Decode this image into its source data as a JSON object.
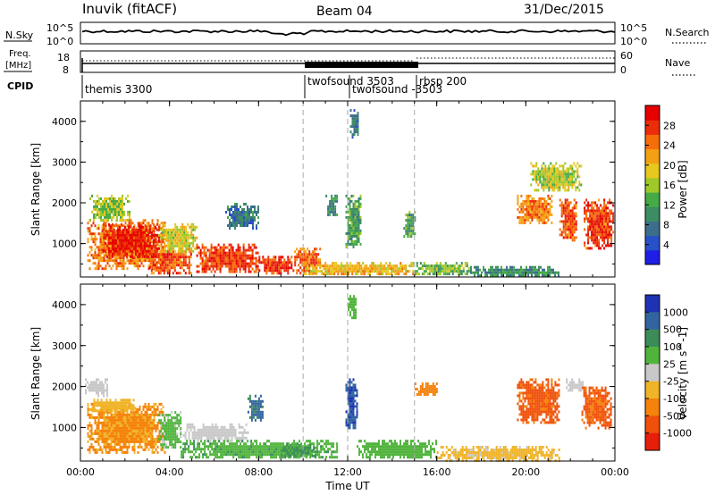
{
  "header": {
    "station": "Inuvik (fitACF)",
    "beam": "Beam 04",
    "date": "31/Dec/2015"
  },
  "top_panels": {
    "nsky": {
      "left_label": "N.Sky",
      "left_ticks": [
        "10^5",
        "10^0"
      ],
      "right_label": "N.Search",
      "right_ticks": [
        "10^5",
        "10^0"
      ]
    },
    "freq": {
      "left_label_line1": "Freq.",
      "left_label_line2": "[MHz]",
      "left_ticks": [
        "18",
        "8"
      ],
      "right_label": "Nave",
      "right_ticks": [
        "60",
        "0"
      ]
    },
    "cpid": {
      "label": "CPID",
      "programs": [
        "themis 3300",
        "twofsound 3503",
        "twofsound -3503",
        "rbsp 200"
      ]
    }
  },
  "chart_data": [
    {
      "type": "heatmap",
      "name": "power",
      "ylabel": "Slant Range [km]",
      "xlabel": "",
      "x_ticks": [
        "00:00",
        "04:00",
        "08:00",
        "12:00",
        "16:00",
        "20:00",
        "00:00"
      ],
      "y_ticks": [
        "1000",
        "2000",
        "3000",
        "4000"
      ],
      "xlim_hours": [
        0,
        24
      ],
      "ylim_km": [
        180,
        4500
      ],
      "colorbar": {
        "label": "Power [dB]",
        "ticks": [
          "4",
          "8",
          "12",
          "16",
          "20",
          "24",
          "28"
        ],
        "range": [
          0,
          32
        ],
        "colors": [
          "#1e1ee6",
          "#2850c8",
          "#3c6e8c",
          "#3c8c64",
          "#46aa46",
          "#a0c828",
          "#e6c81e",
          "#f5a014",
          "#f56e0a",
          "#eb2d0a",
          "#e60000"
        ]
      },
      "regions": [
        {
          "t0": 0.3,
          "t1": 3.8,
          "r0": 400,
          "r1": 1600,
          "v": 24
        },
        {
          "t0": 1.0,
          "t1": 3.5,
          "r0": 700,
          "r1": 1500,
          "v": 29
        },
        {
          "t0": 3.0,
          "t1": 5.0,
          "r0": 300,
          "r1": 900,
          "v": 26
        },
        {
          "t0": 3.5,
          "t1": 5.2,
          "r0": 800,
          "r1": 1500,
          "v": 18
        },
        {
          "t0": 5.2,
          "t1": 8.0,
          "r0": 300,
          "r1": 1000,
          "v": 27
        },
        {
          "t0": 8.0,
          "t1": 9.6,
          "r0": 300,
          "r1": 700,
          "v": 28
        },
        {
          "t0": 9.6,
          "t1": 10.8,
          "r0": 300,
          "r1": 900,
          "v": 25
        },
        {
          "t0": 10.0,
          "t1": 15.0,
          "r0": 250,
          "r1": 550,
          "v": 20
        },
        {
          "t0": 15.0,
          "t1": 17.5,
          "r0": 250,
          "r1": 550,
          "v": 14
        },
        {
          "t0": 17.5,
          "t1": 21.5,
          "r0": 220,
          "r1": 450,
          "v": 10
        },
        {
          "t0": 11.9,
          "t1": 12.6,
          "r0": 900,
          "r1": 2200,
          "v": 12
        },
        {
          "t0": 12.1,
          "t1": 12.5,
          "r0": 3600,
          "r1": 4300,
          "v": 8
        },
        {
          "t0": 0.4,
          "t1": 2.2,
          "r0": 1600,
          "r1": 2200,
          "v": 16
        },
        {
          "t0": 6.5,
          "t1": 8.0,
          "r0": 1400,
          "r1": 2000,
          "v": 8
        },
        {
          "t0": 19.6,
          "t1": 21.2,
          "r0": 1500,
          "r1": 2200,
          "v": 24
        },
        {
          "t0": 21.5,
          "t1": 22.3,
          "r0": 1100,
          "r1": 2100,
          "v": 26
        },
        {
          "t0": 22.6,
          "t1": 23.9,
          "r0": 900,
          "r1": 2100,
          "v": 27
        },
        {
          "t0": 20.2,
          "t1": 22.5,
          "r0": 2300,
          "r1": 3000,
          "v": 17
        },
        {
          "t0": 14.5,
          "t1": 15.0,
          "r0": 1200,
          "r1": 1800,
          "v": 12
        },
        {
          "t0": 11.0,
          "t1": 11.5,
          "r0": 1700,
          "r1": 2200,
          "v": 10
        }
      ]
    },
    {
      "type": "heatmap",
      "name": "velocity",
      "ylabel": "Slant Range [km]",
      "xlabel": "Time UT",
      "x_ticks": [
        "00:00",
        "04:00",
        "08:00",
        "12:00",
        "16:00",
        "20:00",
        "00:00"
      ],
      "y_ticks": [
        "1000",
        "2000",
        "3000",
        "4000"
      ],
      "xlim_hours": [
        0,
        24
      ],
      "ylim_km": [
        180,
        4500
      ],
      "colorbar": {
        "label": "Velocity [m s^-1]",
        "ticks": [
          "1000",
          "500",
          "100",
          "25",
          "-25",
          "-100",
          "-500",
          "-1000"
        ],
        "colors": [
          "#1e32b4",
          "#3264a0",
          "#3c8c5a",
          "#50b43c",
          "#c8c8c8",
          "#f0b428",
          "#f5820a",
          "#f0500a",
          "#e61e0a"
        ]
      },
      "regions": [
        {
          "t0": 0.3,
          "t1": 3.8,
          "r0": 400,
          "r1": 1600,
          "v": -120
        },
        {
          "t0": 0.5,
          "t1": 2.5,
          "r0": 1400,
          "r1": 1700,
          "v": -60
        },
        {
          "t0": 3.5,
          "t1": 4.5,
          "r0": 500,
          "r1": 1400,
          "v": 40
        },
        {
          "t0": 4.6,
          "t1": 7.5,
          "r0": 700,
          "r1": 1100,
          "v": 0
        },
        {
          "t0": 4.5,
          "t1": 11.5,
          "r0": 250,
          "r1": 700,
          "v": 80
        },
        {
          "t0": 7.5,
          "t1": 8.2,
          "r0": 1200,
          "r1": 1800,
          "v": 600
        },
        {
          "t0": 11.9,
          "t1": 12.4,
          "r0": 900,
          "r1": 2200,
          "v": 900
        },
        {
          "t0": 12.4,
          "t1": 16.0,
          "r0": 250,
          "r1": 700,
          "v": 60
        },
        {
          "t0": 16.0,
          "t1": 21.5,
          "r0": 220,
          "r1": 550,
          "v": -40
        },
        {
          "t0": 19.6,
          "t1": 21.5,
          "r0": 1100,
          "r1": 2200,
          "v": -700
        },
        {
          "t0": 22.5,
          "t1": 23.8,
          "r0": 1000,
          "r1": 2000,
          "v": -600
        },
        {
          "t0": 21.8,
          "t1": 22.6,
          "r0": 1900,
          "r1": 2200,
          "v": 0
        },
        {
          "t0": 0.2,
          "t1": 1.2,
          "r0": 1800,
          "r1": 2200,
          "v": 0
        },
        {
          "t0": 15.0,
          "t1": 16.0,
          "r0": 1800,
          "r1": 2100,
          "v": -300
        },
        {
          "t0": 12.0,
          "t1": 12.4,
          "r0": 3700,
          "r1": 4300,
          "v": 50
        },
        {
          "t0": 9.0,
          "t1": 10.6,
          "r0": 300,
          "r1": 600,
          "v": 120
        }
      ]
    }
  ]
}
